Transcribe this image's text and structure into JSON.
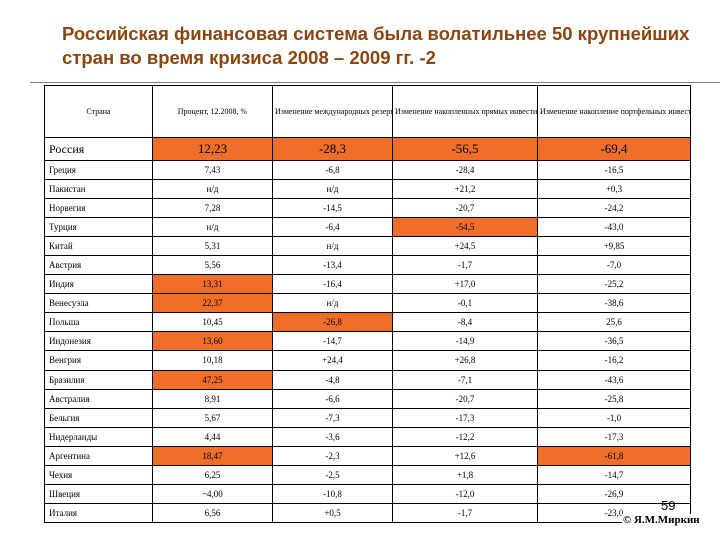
{
  "title": "Российская финансовая система была волатильнее 50 крупнейших стран во время кризиса 2008 – 2009 гг. -2",
  "page_number": "59",
  "author": "© Я.М.Миркин",
  "highlight_color": "#ef6f2a",
  "headers": [
    "Страна",
    "Процент, 12.2008, %",
    "Изменение международных резервов, 12.2008 / 07.2008, %",
    "Изменение накопленных прямых инвестиций в экономику, 2008 / 2007, %",
    "Изменение накопление портфельных инвестиций в эконо-мику, 2008 / 2007, %"
  ],
  "rows": [
    {
      "country": "Россия",
      "values": [
        "12,23",
        "-28,3",
        "-56,5",
        "-69,4"
      ],
      "hl": [
        true,
        true,
        true,
        true
      ]
    },
    {
      "country": "Греция",
      "values": [
        "7,43",
        "-6,8",
        "-28,4",
        "-16,5"
      ],
      "hl": [
        false,
        false,
        false,
        false
      ]
    },
    {
      "country": "Пакистан",
      "values": [
        "н/д",
        "н/д",
        "+21,2",
        "+0,3"
      ],
      "hl": [
        false,
        false,
        false,
        false
      ]
    },
    {
      "country": "Норвегия",
      "values": [
        "7,28",
        "-14,5",
        "-20,7",
        "-24,2"
      ],
      "hl": [
        false,
        false,
        false,
        false
      ]
    },
    {
      "country": "Турция",
      "values": [
        "н/д",
        "-6,4",
        "-54,5",
        "-43,0"
      ],
      "hl": [
        false,
        false,
        true,
        false
      ]
    },
    {
      "country": "Китай",
      "values": [
        "5,31",
        "н/д",
        "+24,5",
        "+9,85"
      ],
      "hl": [
        false,
        false,
        false,
        false
      ]
    },
    {
      "country": "Австрия",
      "values": [
        "5,56",
        "-13,4",
        "-1,7",
        "-7,0"
      ],
      "hl": [
        false,
        false,
        false,
        false
      ]
    },
    {
      "country": "Индия",
      "values": [
        "13,31",
        "-16,4",
        "+17,0",
        "-25,2"
      ],
      "hl": [
        true,
        false,
        false,
        false
      ]
    },
    {
      "country": "Венесуэла",
      "values": [
        "22,37",
        "н/д",
        "-0,1",
        "-38,6"
      ],
      "hl": [
        true,
        false,
        false,
        false
      ]
    },
    {
      "country": "Польша",
      "values": [
        "10,45",
        "-26,8",
        "-8,4",
        "25,6"
      ],
      "hl": [
        false,
        true,
        false,
        false
      ]
    },
    {
      "country": "Индонезия",
      "values": [
        "13,60",
        "-14,7",
        "-14,9",
        "-36,5"
      ],
      "hl": [
        true,
        false,
        false,
        false
      ]
    },
    {
      "country": "Венгрия",
      "values": [
        "10,18",
        "+24,4",
        "+26,8",
        "-16,2"
      ],
      "hl": [
        false,
        false,
        false,
        false
      ]
    },
    {
      "country": "Бразилия",
      "values": [
        "47,25",
        "-4,8",
        "-7,1",
        "-43,6"
      ],
      "hl": [
        true,
        false,
        false,
        false
      ]
    },
    {
      "country": "Австралия",
      "values": [
        "8,91",
        "-6,6",
        "-20,7",
        "-25,8"
      ],
      "hl": [
        false,
        false,
        false,
        false
      ]
    },
    {
      "country": "Бельгия",
      "values": [
        "5,67",
        "-7,3",
        "-17,3",
        "-1,0"
      ],
      "hl": [
        false,
        false,
        false,
        false
      ]
    },
    {
      "country": "Нидерланды",
      "values": [
        "4,44",
        "-3,6",
        "-12,2",
        "-17,3"
      ],
      "hl": [
        false,
        false,
        false,
        false
      ]
    },
    {
      "country": "Аргентина",
      "values": [
        "18,47",
        "-2,3",
        "+12,6",
        "-61,8"
      ],
      "hl": [
        true,
        false,
        false,
        true
      ]
    },
    {
      "country": "Чехия",
      "values": [
        "6,25",
        "-2,5",
        "+1,8",
        "-14,7"
      ],
      "hl": [
        false,
        false,
        false,
        false
      ]
    },
    {
      "country": "Швеция",
      "values": [
        "~4,00",
        "-10,8",
        "-12,0",
        "-26,9"
      ],
      "hl": [
        false,
        false,
        false,
        false
      ]
    },
    {
      "country": "Италия",
      "values": [
        "6,56",
        "+0,5",
        "-1,7",
        "-23,0"
      ],
      "hl": [
        false,
        false,
        false,
        false
      ]
    }
  ]
}
